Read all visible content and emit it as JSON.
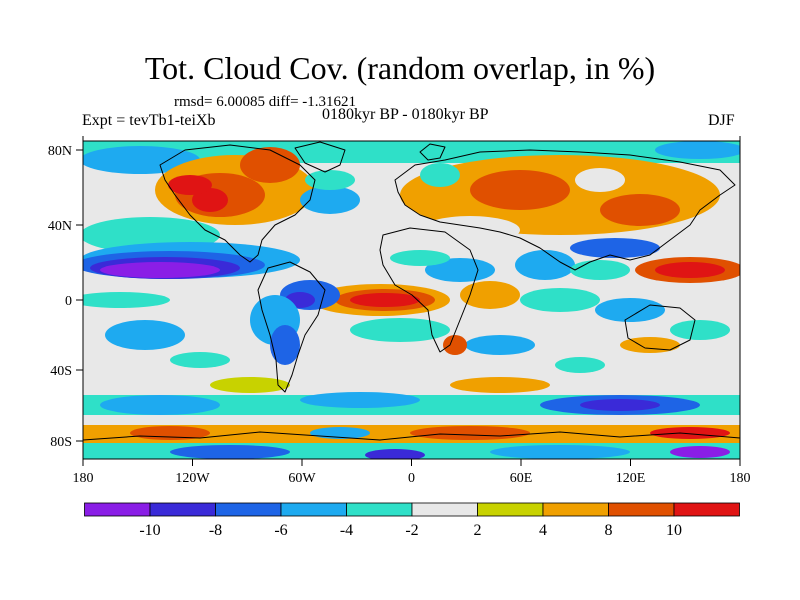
{
  "map": {
    "title": "Tot. Cloud Cov. (random overlap, in %)",
    "stats": "rmsd= 6.00085 diff= -1.31621",
    "experiment": "Expt = tevTb1-teiXb",
    "period": "0180kyr BP - 0180kyr BP",
    "season": "DJF",
    "projection": "equirectangular",
    "lon_range": [
      -180,
      180
    ],
    "lat_range": [
      -90,
      90
    ],
    "lon_ticks": [
      "180",
      "120W",
      "60W",
      "0",
      "60E",
      "120E",
      "180"
    ],
    "lat_ticks": [
      "80N",
      "40N",
      "0",
      "40S",
      "80S"
    ]
  },
  "colorbar": {
    "labels": [
      "-10",
      "-8",
      "-6",
      "-4",
      "-2",
      "2",
      "4",
      "8",
      "10"
    ],
    "levels": [
      -10,
      -8,
      -6,
      -4,
      -2,
      2,
      4,
      8,
      10
    ],
    "colors": [
      "#8a1ee6",
      "#3a2ad8",
      "#1e64e6",
      "#1eaaf0",
      "#2fe0c8",
      "#e8e8e8",
      "#c8d200",
      "#f0a000",
      "#e05000",
      "#e01414"
    ]
  }
}
